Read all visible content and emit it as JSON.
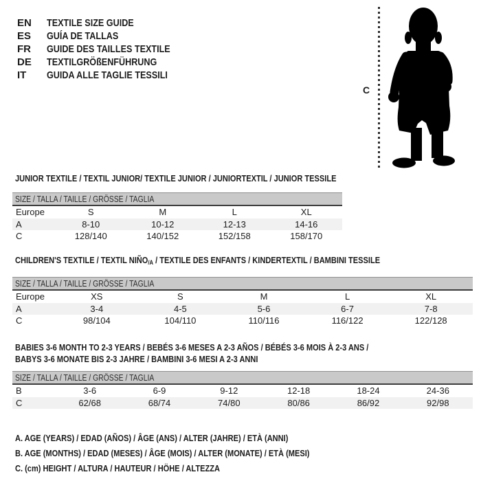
{
  "colors": {
    "header_bar_bg": "#c9c9c9",
    "stripe_bg": "#f1f1f1",
    "bar_border_top": "#8f8f8f",
    "bar_border_bottom": "#3c3c3c",
    "text": "#1b1b1b",
    "silhouette": "#000000"
  },
  "language_guide": {
    "items": [
      {
        "code": "EN",
        "label": "TEXTILE SIZE GUIDE"
      },
      {
        "code": "ES",
        "label": "GUÍA DE TALLAS"
      },
      {
        "code": "FR",
        "label": "GUIDE DES TAILLES TEXTILE"
      },
      {
        "code": "DE",
        "label": "TEXTILGRÖßENFÜHRUNG"
      },
      {
        "code": "IT",
        "label": "GUIDA ALLE TAGLIE TESSILI"
      }
    ]
  },
  "figure": {
    "height_label": "C",
    "image": "toddler-silhouette"
  },
  "size_row_header": "SIZE / TALLA / TAILLE / GRÖSSE / TAGLIA",
  "sections": [
    {
      "id": "junior",
      "title_lines": [
        [
          {
            "t": "JUNIOR TEXTILE / TEXTIL JUNIOR/ TEXTILE JUNIOR / JUNIORTEXTIL / JUNIOR TESSILE"
          }
        ]
      ],
      "rows": [
        {
          "label": "Europe",
          "values": [
            "S",
            "M",
            "L",
            "XL"
          ],
          "striped": false
        },
        {
          "label": "A",
          "values": [
            "8-10",
            "10-12",
            "12-13",
            "14-16"
          ],
          "striped": true
        },
        {
          "label": "C",
          "values": [
            "128/140",
            "140/152",
            "152/158",
            "158/170"
          ],
          "striped": false
        }
      ]
    },
    {
      "id": "children",
      "title_lines": [
        [
          {
            "t": "CHILDREN'S TEXTILE / TEXTIL NIÑO"
          },
          {
            "t": "/A",
            "sub": true
          },
          {
            "t": " / TEXTILE DES ENFANTS / KINDERTEXTIL / BAMBINI TESSILE"
          }
        ]
      ],
      "rows": [
        {
          "label": "Europe",
          "values": [
            "XS",
            "S",
            "M",
            "L",
            "XL"
          ],
          "striped": false
        },
        {
          "label": "A",
          "values": [
            "3-4",
            "4-5",
            "5-6",
            "6-7",
            "7-8"
          ],
          "striped": true
        },
        {
          "label": "C",
          "values": [
            "98/104",
            "104/110",
            "110/116",
            "116/122",
            "122/128"
          ],
          "striped": false
        }
      ]
    },
    {
      "id": "babies",
      "title_lines": [
        [
          {
            "t": "BABIES 3-6 MONTH TO 2-3 YEARS / BEBÉS 3-6 MESES A 2-3 AÑOS / BÉBÉS 3-6 MOIS À 2-3 ANS /"
          }
        ],
        [
          {
            "t": "BABYS 3-6 MONATE BIS 2-3 JAHRE / BAMBINI 3-6 MESI A 2-3 ANNI"
          }
        ]
      ],
      "rows": [
        {
          "label": "B",
          "values": [
            "3-6",
            "6-9",
            "9-12",
            "12-18",
            "18-24",
            "24-36"
          ],
          "striped": false
        },
        {
          "label": "C",
          "values": [
            "62/68",
            "68/74",
            "74/80",
            "80/86",
            "86/92",
            "92/98"
          ],
          "striped": true
        }
      ]
    }
  ],
  "footnotes": [
    "A. AGE (YEARS) / EDAD (AÑOS) / ÂGE (ANS) / ALTER (JAHRE) / ETÀ (ANNI)",
    "B. AGE (MONTHS) / EDAD (MESES) / ÂGE (MOIS) / ALTER (MONATE) / ETÀ (MESI)",
    "C. (cm) HEIGHT / ALTURA / HAUTEUR / HÖHE / ALTEZZA"
  ]
}
